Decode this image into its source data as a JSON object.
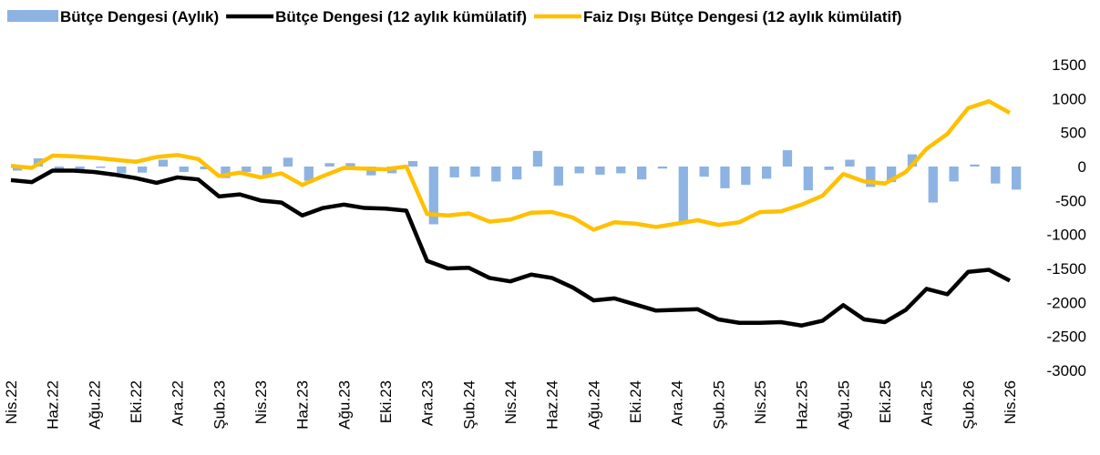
{
  "chart_data": {
    "type": "bar_line",
    "categories": [
      "Nis.22",
      null,
      "Haz.22",
      null,
      "Ağu.22",
      null,
      "Eki.22",
      null,
      "Ara.22",
      null,
      "Şub.23",
      null,
      "Nis.23",
      null,
      "Haz.23",
      null,
      "Ağu.23",
      null,
      "Eki.23",
      null,
      "Ara.23",
      null,
      "Şub.24",
      null,
      "Nis.24",
      null,
      "Haz.24",
      null,
      "Ağu.24",
      null,
      "Eki.24",
      null,
      "Ara.24",
      null,
      "Şub.25",
      null,
      "Nis.25",
      null,
      "Haz.25",
      null,
      "Ağu.25",
      null,
      "Eki.25",
      null,
      "Ara.25",
      null,
      "Şub.26",
      null,
      "Nis.26"
    ],
    "series": [
      {
        "name": "Bütçe Dengesi (Aylık)",
        "kind": "bar",
        "color": "#8db3e2",
        "values": [
          -60,
          120,
          -40,
          -50,
          -20,
          -100,
          -90,
          100,
          -80,
          -40,
          -170,
          -80,
          -130,
          130,
          -210,
          50,
          50,
          -130,
          -100,
          80,
          -850,
          -160,
          -150,
          -220,
          -190,
          230,
          -280,
          -100,
          -120,
          -100,
          -190,
          -30,
          -830,
          -150,
          -320,
          -270,
          -180,
          240,
          -350,
          -50,
          100,
          -300,
          -230,
          180,
          -530,
          -220,
          30,
          -250,
          -340
        ]
      },
      {
        "name": "Bütçe Dengesi (12 aylık kümülatif)",
        "kind": "line",
        "color": "#000000",
        "values": [
          -200,
          -230,
          -60,
          -60,
          -80,
          -120,
          -170,
          -240,
          -160,
          -190,
          -440,
          -410,
          -500,
          -530,
          -720,
          -610,
          -560,
          -610,
          -620,
          -650,
          -1390,
          -1500,
          -1490,
          -1640,
          -1690,
          -1590,
          -1640,
          -1780,
          -1970,
          -1940,
          -2030,
          -2120,
          -2110,
          -2100,
          -2250,
          -2300,
          -2300,
          -2290,
          -2340,
          -2270,
          -2040,
          -2250,
          -2290,
          -2110,
          -1800,
          -1880,
          -1550,
          -1520,
          -1680
        ]
      },
      {
        "name": "Faiz Dışı Bütçe Dengesi (12 aylık kümülatif)",
        "kind": "line",
        "color": "#ffc000",
        "values": [
          10,
          -20,
          160,
          150,
          130,
          100,
          70,
          140,
          170,
          110,
          -140,
          -90,
          -160,
          -100,
          -270,
          -140,
          -20,
          -30,
          -40,
          0,
          -700,
          -720,
          -690,
          -810,
          -780,
          -680,
          -670,
          -750,
          -930,
          -820,
          -840,
          -890,
          -840,
          -790,
          -860,
          -820,
          -670,
          -660,
          -560,
          -430,
          -110,
          -220,
          -250,
          -80,
          260,
          480,
          860,
          960,
          790
        ]
      }
    ],
    "ylim": [
      -3000,
      1500
    ],
    "yticks": [
      -3000,
      -2500,
      -2000,
      -1500,
      -1000,
      -500,
      0,
      500,
      1000,
      1500
    ]
  }
}
